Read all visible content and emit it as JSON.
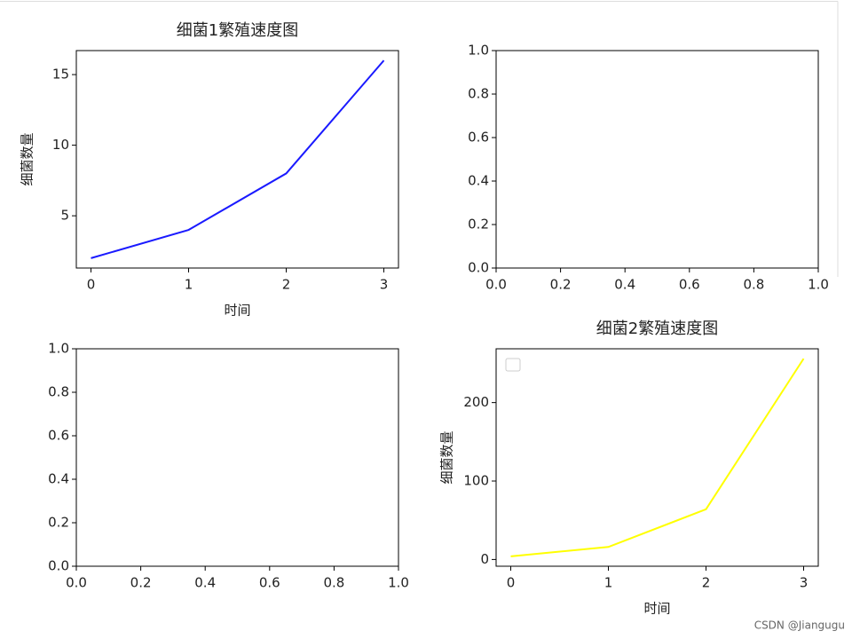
{
  "chart_data": [
    {
      "type": "line",
      "title": "细菌1繁殖速度图",
      "xlabel": "时间",
      "ylabel": "细菌数量",
      "x": [
        0,
        1,
        2,
        3
      ],
      "values": [
        2,
        4,
        8,
        16
      ],
      "color": "#1a1aff",
      "xlim": [
        -0.15,
        3.15
      ],
      "xticks": [
        0,
        1,
        2,
        3
      ],
      "ylim": [
        1.3,
        16.7
      ],
      "yticks": [
        5,
        10,
        15
      ]
    },
    {
      "type": "empty",
      "xlim": [
        0,
        1
      ],
      "xticks": [
        {
          "value": 0,
          "label": "0.0"
        },
        {
          "value": 0.2,
          "label": "0.2"
        },
        {
          "value": 0.4,
          "label": "0.4"
        },
        {
          "value": 0.6,
          "label": "0.6"
        },
        {
          "value": 0.8,
          "label": "0.8"
        },
        {
          "value": 1,
          "label": "1.0"
        }
      ],
      "ylim": [
        0,
        1
      ],
      "yticks": [
        {
          "value": 0,
          "label": "0.0"
        },
        {
          "value": 0.2,
          "label": "0.2"
        },
        {
          "value": 0.4,
          "label": "0.4"
        },
        {
          "value": 0.6,
          "label": "0.6"
        },
        {
          "value": 0.8,
          "label": "0.8"
        },
        {
          "value": 1,
          "label": "1.0"
        }
      ]
    },
    {
      "type": "empty",
      "xlim": [
        0,
        1
      ],
      "xticks": [
        {
          "value": 0,
          "label": "0.0"
        },
        {
          "value": 0.2,
          "label": "0.2"
        },
        {
          "value": 0.4,
          "label": "0.4"
        },
        {
          "value": 0.6,
          "label": "0.6"
        },
        {
          "value": 0.8,
          "label": "0.8"
        },
        {
          "value": 1,
          "label": "1.0"
        }
      ],
      "ylim": [
        0,
        1
      ],
      "yticks": [
        {
          "value": 0,
          "label": "0.0"
        },
        {
          "value": 0.2,
          "label": "0.2"
        },
        {
          "value": 0.4,
          "label": "0.4"
        },
        {
          "value": 0.6,
          "label": "0.6"
        },
        {
          "value": 0.8,
          "label": "0.8"
        },
        {
          "value": 1,
          "label": "1.0"
        }
      ]
    },
    {
      "type": "line",
      "title": "细菌2繁殖速度图",
      "xlabel": "时间",
      "ylabel": "细菌数量",
      "x": [
        0,
        1,
        2,
        3
      ],
      "values": [
        4,
        16,
        64,
        256
      ],
      "color": "#ffff00",
      "xlim": [
        -0.15,
        3.15
      ],
      "xticks": [
        0,
        1,
        2,
        3
      ],
      "ylim": [
        -8.6,
        268.6
      ],
      "yticks": [
        0,
        100,
        200
      ],
      "legend": "upper left"
    }
  ],
  "watermark": "CSDN @Jiangugu"
}
